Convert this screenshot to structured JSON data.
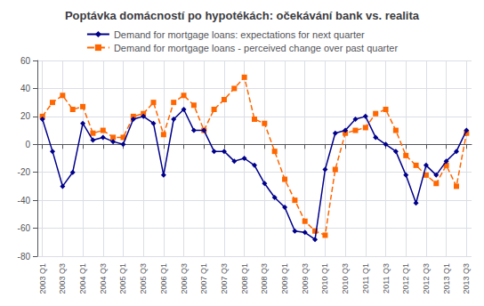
{
  "chart_data": {
    "type": "line",
    "title": "Poptávka domácností po hypotékách: očekávání bank vs. realita",
    "categories": [
      "2003 Q1",
      null,
      "2003 Q3",
      null,
      "2004 Q1",
      null,
      "2004 Q3",
      null,
      "2005 Q1",
      null,
      "2005 Q3",
      null,
      "2006 Q1",
      null,
      "2006 Q3",
      null,
      "2007 Q1",
      null,
      "2007 Q3",
      null,
      "2008 Q1",
      null,
      "2008 Q3",
      null,
      "2009 Q1",
      null,
      "2009 Q3",
      null,
      "2010 Q1",
      null,
      "2010 Q3",
      null,
      "2011 Q1",
      null,
      "2011 Q3",
      null,
      "2012 Q1",
      null,
      "2012 Q3",
      null,
      "2013 Q1",
      null,
      "2013 Q3"
    ],
    "series": [
      {
        "name": "Demand for mortgage loans: expectations for next quarter",
        "color": "#00008B",
        "marker": "diamond",
        "line_style": "solid",
        "values": [
          18,
          -5,
          -30,
          -20,
          15,
          3,
          5,
          2,
          0,
          18,
          20,
          15,
          -22,
          18,
          25,
          10,
          10,
          -5,
          -5,
          -12,
          -10,
          -15,
          -28,
          -38,
          -45,
          -62,
          -63,
          -68,
          -18,
          8,
          10,
          18,
          20,
          5,
          0,
          -5,
          -22,
          -42,
          -15,
          -22,
          -12,
          -5,
          10
        ]
      },
      {
        "name": "Demand for mortgage loans - perceived change over past quarter",
        "color": "#FF6600",
        "marker": "square",
        "line_style": "dashed",
        "values": [
          20,
          30,
          35,
          25,
          27,
          8,
          10,
          5,
          5,
          20,
          22,
          30,
          7,
          30,
          35,
          28,
          10,
          25,
          32,
          40,
          48,
          18,
          15,
          -5,
          -25,
          -40,
          -55,
          -62,
          -65,
          -18,
          8,
          10,
          12,
          22,
          25,
          10,
          -8,
          -15,
          -22,
          -28,
          -15,
          -30,
          8
        ]
      }
    ],
    "ylim": [
      -80,
      60
    ],
    "yticks": [
      -80,
      -60,
      -40,
      -20,
      0,
      20,
      40,
      60
    ],
    "grid": true,
    "legend": "top"
  }
}
